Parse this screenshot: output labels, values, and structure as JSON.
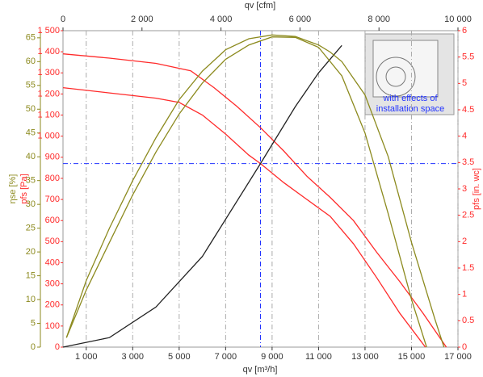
{
  "chart_data": {
    "type": "line",
    "x_label": "qv [m³/h]",
    "x2_label": "qv [cfm]",
    "y_label": "pfs [Pa]",
    "y2_label": "pfs [in. wc]",
    "y3_label": "ηse [%]",
    "annotation": "with effects of installation space",
    "xlim": [
      0,
      17000
    ],
    "xticks": [
      {
        "value": 1000,
        "label": "1 000"
      },
      {
        "value": 3000,
        "label": "3 000"
      },
      {
        "value": 5000,
        "label": "5 000"
      },
      {
        "value": 7000,
        "label": "7 000"
      },
      {
        "value": 9000,
        "label": "9 000"
      },
      {
        "value": 11000,
        "label": "11 000"
      },
      {
        "value": 13000,
        "label": "13 000"
      },
      {
        "value": 15000,
        "label": "15 000"
      },
      {
        "value": 17000,
        "label": "17 000"
      }
    ],
    "x2lim": [
      0,
      10000
    ],
    "x2ticks": [
      0,
      {
        "value": 2000,
        "label": "2 000"
      },
      {
        "value": 4000,
        "label": "4 000"
      },
      {
        "value": 6000,
        "label": "6 000"
      },
      {
        "value": 8000,
        "label": "8 000"
      },
      {
        "value": 10000,
        "label": "10 000"
      }
    ],
    "ylim": [
      0,
      1500
    ],
    "yticks": [
      0,
      100,
      200,
      300,
      400,
      500,
      600,
      700,
      800,
      900,
      {
        "value": 1000,
        "label": "1 000"
      },
      {
        "value": 1100,
        "label": "1 100"
      },
      {
        "value": 1200,
        "label": "1 200"
      },
      {
        "value": 1300,
        "label": "1 300"
      },
      {
        "value": 1400,
        "label": "1 400"
      },
      {
        "value": 1500,
        "label": "1 500"
      }
    ],
    "y2lim": [
      0,
      6
    ],
    "y2ticks": [
      0,
      0.5,
      1,
      1.5,
      2,
      2.5,
      3,
      3.5,
      4,
      4.5,
      5,
      5.5,
      6
    ],
    "y3lim": [
      0,
      66.5
    ],
    "y3ticks": [
      0,
      5,
      10,
      15,
      20,
      25,
      30,
      35,
      40,
      45,
      50,
      55,
      60,
      65
    ],
    "grid": true,
    "crosshair": {
      "x": 8500,
      "y": 870
    },
    "series": [
      {
        "color": "#ff2a2a",
        "axis": "y",
        "x": [
          0,
          2000,
          4000,
          5500,
          6500,
          7500,
          8500,
          9500,
          10500,
          11500,
          12500,
          13500,
          14500,
          15500,
          16500
        ],
        "values": [
          1390,
          1370,
          1345,
          1310,
          1230,
          1140,
          1040,
          930,
          810,
          710,
          600,
          450,
          310,
          160,
          0
        ]
      },
      {
        "color": "#ff2a2a",
        "axis": "y",
        "x": [
          0,
          2000,
          4000,
          5000,
          6000,
          7000,
          8000,
          8500,
          9500,
          10500,
          11500,
          12500,
          13500,
          14500,
          15600
        ],
        "values": [
          1230,
          1205,
          1180,
          1160,
          1100,
          1010,
          910,
          870,
          780,
          700,
          620,
          490,
          330,
          160,
          0
        ]
      },
      {
        "color": "#222222",
        "axis": "y",
        "x": [
          0,
          2000,
          4000,
          6000,
          8500,
          10000,
          11000,
          12000
        ],
        "values": [
          0,
          45,
          190,
          430,
          870,
          1140,
          1300,
          1430
        ]
      },
      {
        "color": "#8c8a1e",
        "axis": "y3",
        "x": [
          150,
          1000,
          2000,
          3000,
          4000,
          5000,
          6000,
          7000,
          8000,
          9000,
          10000,
          11000,
          11500,
          12000,
          13000,
          14000,
          15000,
          16000,
          16400
        ],
        "values": [
          2,
          14,
          25,
          35,
          44,
          52,
          58,
          62.5,
          64.8,
          65.6,
          65.3,
          63.5,
          62,
          60,
          53,
          40,
          22,
          6,
          0
        ]
      },
      {
        "color": "#8c8a1e",
        "axis": "y3",
        "x": [
          150,
          1000,
          2000,
          3000,
          4000,
          5000,
          6000,
          7000,
          8000,
          9000,
          10000,
          11000,
          12000,
          13000,
          14000,
          15000,
          15650
        ],
        "values": [
          2,
          12,
          22,
          32,
          41,
          49,
          55.5,
          60.5,
          63.5,
          65.2,
          65.1,
          63,
          57,
          45,
          28,
          10,
          0
        ]
      }
    ]
  }
}
